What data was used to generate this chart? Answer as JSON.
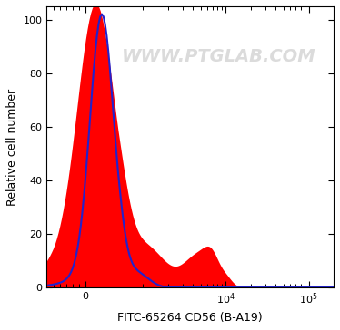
{
  "xlabel": "FITC-65264 CD56 (B-A19)",
  "ylabel": "Relative cell number",
  "watermark": "WWW.PTGLAB.COM",
  "ylim": [
    0,
    105
  ],
  "yticks": [
    0,
    20,
    40,
    60,
    80,
    100
  ],
  "background_color": "#ffffff",
  "red_fill_color": "#ff0000",
  "blue_line_color": "#2222cc",
  "xlabel_fontsize": 9,
  "ylabel_fontsize": 9,
  "tick_fontsize": 8,
  "watermark_fontsize": 14,
  "watermark_color": "#c8c8c8",
  "watermark_alpha": 0.65,
  "linthresh": 500,
  "linscale": 0.35,
  "xlim_min": -600,
  "xlim_max": 200000,
  "red_peak1_mu": 150,
  "red_peak1_sigma": 280,
  "red_peak1_amp": 90,
  "red_shoulder_mu": 600,
  "red_shoulder_sigma": 900,
  "red_shoulder_amp": 18,
  "red_peak2_mu": 3500,
  "red_peak2_sigma": 1200,
  "red_peak2_amp": 7,
  "red_peak3_mu": 6000,
  "red_peak3_sigma": 1500,
  "red_peak3_amp": 11,
  "red_peak4_mu": 8500,
  "red_peak4_sigma": 2500,
  "red_peak4_amp": 6,
  "blue_peak1_mu": 250,
  "blue_peak1_sigma": 180,
  "blue_peak1_amp": 95,
  "blue_shoulder_mu": 500,
  "blue_shoulder_sigma": 500,
  "blue_shoulder_amp": 8
}
